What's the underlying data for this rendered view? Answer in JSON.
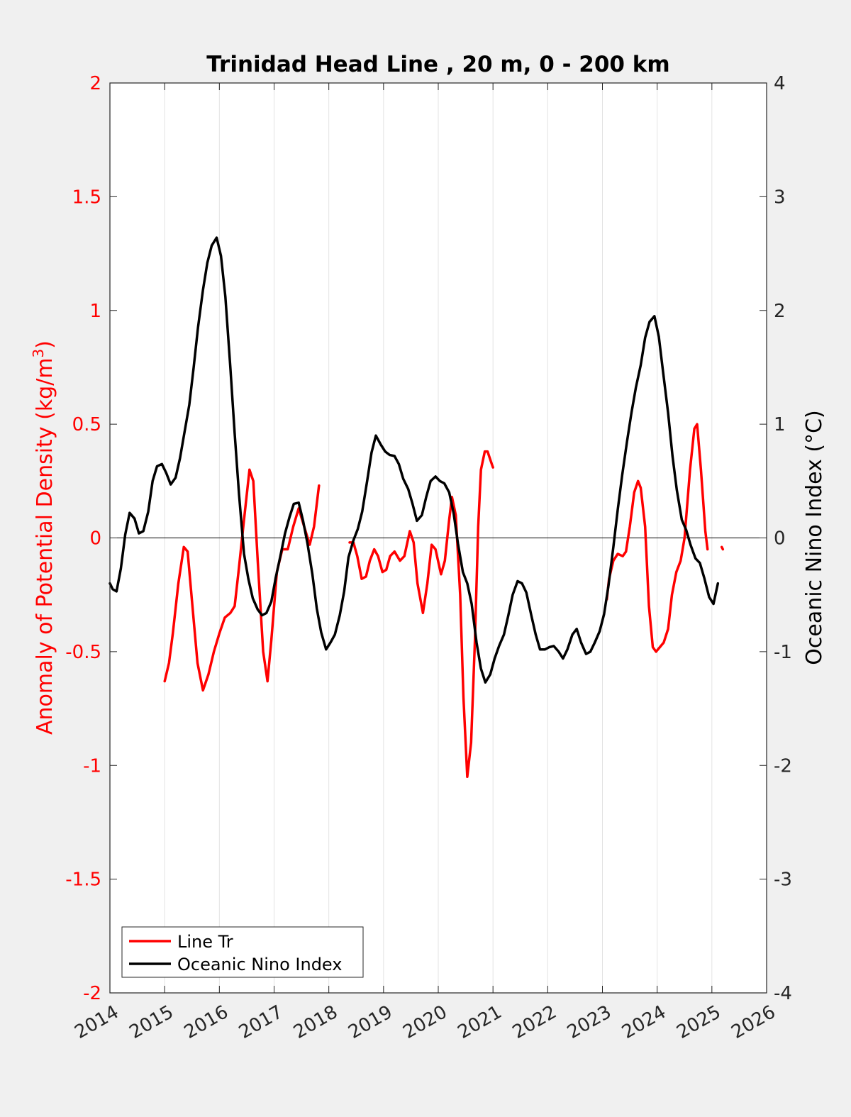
{
  "chart_data": {
    "type": "line",
    "title": "Trinidad Head Line , 20 m, 0 - 200 km",
    "ylabel_left": "Anomaly of Potential Density (kg/m",
    "ylabel_left_sup": "3",
    "ylabel_left_close": ")",
    "ylabel_right": "Oceanic Nino Index (°C)",
    "xlim": [
      2014,
      2026
    ],
    "ylim_left": [
      -2,
      2
    ],
    "ylim_right": [
      -4,
      4
    ],
    "grid": "vertical",
    "legend_position": "bottom-left",
    "x_ticks": [
      2014,
      2015,
      2016,
      2017,
      2018,
      2019,
      2020,
      2021,
      2022,
      2023,
      2024,
      2025,
      2026
    ],
    "x_tick_labels": [
      "2014",
      "2015",
      "2016",
      "2017",
      "2018",
      "2019",
      "2020",
      "2021",
      "2022",
      "2023",
      "2024",
      "2025",
      "2026"
    ],
    "y_left_ticks": [
      2,
      1.5,
      1,
      0.5,
      0,
      -0.5,
      -1,
      -1.5,
      -2
    ],
    "y_left_tick_labels": [
      "2",
      "1.5",
      "1",
      "0.5",
      "0",
      "-0.5",
      "-1",
      "-1.5",
      "-2"
    ],
    "y_right_ticks": [
      4,
      3,
      2,
      1,
      0,
      -1,
      -2,
      -3,
      -4
    ],
    "y_right_tick_labels": [
      "4",
      "3",
      "2",
      "1",
      "0",
      "-1",
      "-2",
      "-3",
      "-4"
    ],
    "colors": {
      "line_tr": "#ff0000",
      "oni": "#000000",
      "left_axis": "#ff0000",
      "right_axis": "#262626"
    },
    "series": [
      {
        "name": "Line Tr",
        "axis": "left",
        "segments": [
          [
            [
              2015.0,
              -0.63
            ],
            [
              2015.08,
              -0.55
            ],
            [
              2015.15,
              -0.42
            ],
            [
              2015.25,
              -0.2
            ],
            [
              2015.35,
              -0.04
            ],
            [
              2015.42,
              -0.06
            ],
            [
              2015.5,
              -0.28
            ],
            [
              2015.6,
              -0.55
            ],
            [
              2015.7,
              -0.67
            ],
            [
              2015.8,
              -0.6
            ],
            [
              2015.9,
              -0.5
            ],
            [
              2016.0,
              -0.42
            ],
            [
              2016.1,
              -0.35
            ],
            [
              2016.2,
              -0.33
            ],
            [
              2016.28,
              -0.3
            ],
            [
              2016.35,
              -0.15
            ],
            [
              2016.45,
              0.08
            ],
            [
              2016.55,
              0.3
            ],
            [
              2016.62,
              0.25
            ],
            [
              2016.7,
              -0.1
            ],
            [
              2016.8,
              -0.5
            ],
            [
              2016.88,
              -0.63
            ],
            [
              2016.95,
              -0.45
            ],
            [
              2017.05,
              -0.15
            ],
            [
              2017.15,
              -0.05
            ],
            [
              2017.25,
              -0.05
            ],
            [
              2017.35,
              0.05
            ],
            [
              2017.45,
              0.13
            ],
            [
              2017.55,
              0.05
            ],
            [
              2017.65,
              -0.03
            ],
            [
              2017.73,
              0.05
            ],
            [
              2017.82,
              0.23
            ]
          ],
          [
            [
              2018.38,
              -0.02
            ],
            [
              2018.45,
              -0.02
            ],
            [
              2018.52,
              -0.08
            ],
            [
              2018.6,
              -0.18
            ],
            [
              2018.68,
              -0.17
            ],
            [
              2018.75,
              -0.1
            ],
            [
              2018.83,
              -0.05
            ],
            [
              2018.9,
              -0.08
            ],
            [
              2018.98,
              -0.15
            ],
            [
              2019.05,
              -0.14
            ],
            [
              2019.12,
              -0.08
            ],
            [
              2019.2,
              -0.06
            ],
            [
              2019.3,
              -0.1
            ],
            [
              2019.38,
              -0.08
            ],
            [
              2019.48,
              0.03
            ],
            [
              2019.55,
              -0.02
            ],
            [
              2019.62,
              -0.2
            ],
            [
              2019.72,
              -0.33
            ],
            [
              2019.8,
              -0.2
            ],
            [
              2019.88,
              -0.03
            ],
            [
              2019.95,
              -0.05
            ],
            [
              2020.05,
              -0.16
            ],
            [
              2020.12,
              -0.1
            ],
            [
              2020.2,
              0.08
            ],
            [
              2020.25,
              0.18
            ],
            [
              2020.32,
              0.1
            ],
            [
              2020.4,
              -0.25
            ],
            [
              2020.46,
              -0.7
            ],
            [
              2020.53,
              -1.05
            ],
            [
              2020.6,
              -0.9
            ],
            [
              2020.67,
              -0.45
            ],
            [
              2020.73,
              0.05
            ],
            [
              2020.78,
              0.3
            ],
            [
              2020.85,
              0.38
            ],
            [
              2020.9,
              0.38
            ],
            [
              2020.97,
              0.33
            ],
            [
              2021.0,
              0.31
            ]
          ],
          [
            [
              2023.08,
              -0.27
            ],
            [
              2023.12,
              -0.18
            ],
            [
              2023.2,
              -0.1
            ],
            [
              2023.28,
              -0.07
            ],
            [
              2023.37,
              -0.08
            ],
            [
              2023.43,
              -0.06
            ],
            [
              2023.5,
              0.05
            ],
            [
              2023.58,
              0.2
            ],
            [
              2023.65,
              0.25
            ],
            [
              2023.7,
              0.22
            ],
            [
              2023.78,
              0.05
            ],
            [
              2023.85,
              -0.3
            ],
            [
              2023.92,
              -0.48
            ],
            [
              2023.98,
              -0.5
            ],
            [
              2024.05,
              -0.48
            ],
            [
              2024.12,
              -0.46
            ],
            [
              2024.2,
              -0.4
            ],
            [
              2024.27,
              -0.25
            ],
            [
              2024.35,
              -0.15
            ],
            [
              2024.43,
              -0.1
            ],
            [
              2024.5,
              0.0
            ],
            [
              2024.6,
              0.3
            ],
            [
              2024.68,
              0.48
            ],
            [
              2024.73,
              0.5
            ],
            [
              2024.8,
              0.3
            ],
            [
              2024.88,
              0.03
            ],
            [
              2024.92,
              -0.05
            ]
          ],
          [
            [
              2025.18,
              -0.04
            ],
            [
              2025.2,
              -0.05
            ]
          ]
        ]
      },
      {
        "name": "Oceanic Nino Index",
        "axis": "right",
        "segments": [
          [
            [
              2014.0,
              -0.4
            ],
            [
              2014.05,
              -0.45
            ],
            [
              2014.12,
              -0.47
            ],
            [
              2014.2,
              -0.27
            ],
            [
              2014.28,
              0.03
            ],
            [
              2014.36,
              0.22
            ],
            [
              2014.45,
              0.17
            ],
            [
              2014.53,
              0.04
            ],
            [
              2014.61,
              0.06
            ],
            [
              2014.7,
              0.23
            ],
            [
              2014.78,
              0.5
            ],
            [
              2014.86,
              0.63
            ],
            [
              2014.95,
              0.65
            ],
            [
              2015.03,
              0.57
            ],
            [
              2015.11,
              0.47
            ],
            [
              2015.2,
              0.53
            ],
            [
              2015.28,
              0.7
            ],
            [
              2015.36,
              0.92
            ],
            [
              2015.45,
              1.17
            ],
            [
              2015.53,
              1.5
            ],
            [
              2015.61,
              1.85
            ],
            [
              2015.7,
              2.18
            ],
            [
              2015.78,
              2.42
            ],
            [
              2015.86,
              2.57
            ],
            [
              2015.95,
              2.64
            ],
            [
              2016.03,
              2.48
            ],
            [
              2016.11,
              2.12
            ],
            [
              2016.2,
              1.5
            ],
            [
              2016.28,
              0.92
            ],
            [
              2016.36,
              0.38
            ],
            [
              2016.45,
              -0.14
            ],
            [
              2016.53,
              -0.36
            ],
            [
              2016.61,
              -0.53
            ],
            [
              2016.7,
              -0.63
            ],
            [
              2016.78,
              -0.68
            ],
            [
              2016.86,
              -0.66
            ],
            [
              2016.95,
              -0.56
            ],
            [
              2017.03,
              -0.35
            ],
            [
              2017.11,
              -0.17
            ],
            [
              2017.2,
              0.04
            ],
            [
              2017.28,
              0.18
            ],
            [
              2017.36,
              0.3
            ],
            [
              2017.45,
              0.31
            ],
            [
              2017.53,
              0.15
            ],
            [
              2017.61,
              -0.05
            ],
            [
              2017.7,
              -0.32
            ],
            [
              2017.78,
              -0.62
            ],
            [
              2017.86,
              -0.83
            ],
            [
              2017.95,
              -0.98
            ],
            [
              2018.03,
              -0.92
            ],
            [
              2018.11,
              -0.85
            ],
            [
              2018.2,
              -0.68
            ],
            [
              2018.28,
              -0.47
            ],
            [
              2018.36,
              -0.17
            ],
            [
              2018.45,
              -0.02
            ],
            [
              2018.53,
              0.08
            ],
            [
              2018.61,
              0.23
            ],
            [
              2018.7,
              0.5
            ],
            [
              2018.78,
              0.75
            ],
            [
              2018.86,
              0.9
            ],
            [
              2018.95,
              0.82
            ],
            [
              2019.03,
              0.76
            ],
            [
              2019.11,
              0.73
            ],
            [
              2019.2,
              0.72
            ],
            [
              2019.28,
              0.65
            ],
            [
              2019.36,
              0.52
            ],
            [
              2019.45,
              0.43
            ],
            [
              2019.53,
              0.3
            ],
            [
              2019.61,
              0.15
            ],
            [
              2019.7,
              0.2
            ],
            [
              2019.78,
              0.36
            ],
            [
              2019.86,
              0.5
            ],
            [
              2019.95,
              0.54
            ],
            [
              2020.03,
              0.5
            ],
            [
              2020.11,
              0.48
            ],
            [
              2020.2,
              0.4
            ],
            [
              2020.28,
              0.22
            ],
            [
              2020.36,
              -0.05
            ],
            [
              2020.45,
              -0.3
            ],
            [
              2020.53,
              -0.4
            ],
            [
              2020.61,
              -0.58
            ],
            [
              2020.7,
              -0.92
            ],
            [
              2020.78,
              -1.15
            ],
            [
              2020.86,
              -1.27
            ],
            [
              2020.95,
              -1.2
            ],
            [
              2021.03,
              -1.06
            ],
            [
              2021.11,
              -0.95
            ],
            [
              2021.2,
              -0.85
            ],
            [
              2021.28,
              -0.68
            ],
            [
              2021.36,
              -0.5
            ],
            [
              2021.45,
              -0.38
            ],
            [
              2021.53,
              -0.4
            ],
            [
              2021.61,
              -0.48
            ],
            [
              2021.7,
              -0.68
            ],
            [
              2021.78,
              -0.85
            ],
            [
              2021.86,
              -0.98
            ],
            [
              2021.95,
              -0.98
            ],
            [
              2022.03,
              -0.96
            ],
            [
              2022.11,
              -0.95
            ],
            [
              2022.2,
              -1.0
            ],
            [
              2022.28,
              -1.06
            ],
            [
              2022.36,
              -0.98
            ],
            [
              2022.45,
              -0.85
            ],
            [
              2022.53,
              -0.8
            ],
            [
              2022.61,
              -0.92
            ],
            [
              2022.7,
              -1.02
            ],
            [
              2022.78,
              -1.0
            ],
            [
              2022.86,
              -0.92
            ],
            [
              2022.95,
              -0.82
            ],
            [
              2023.03,
              -0.67
            ],
            [
              2023.11,
              -0.42
            ],
            [
              2023.2,
              -0.08
            ],
            [
              2023.28,
              0.25
            ],
            [
              2023.36,
              0.55
            ],
            [
              2023.45,
              0.85
            ],
            [
              2023.53,
              1.1
            ],
            [
              2023.61,
              1.32
            ],
            [
              2023.7,
              1.52
            ],
            [
              2023.78,
              1.76
            ],
            [
              2023.86,
              1.9
            ],
            [
              2023.95,
              1.95
            ],
            [
              2024.03,
              1.77
            ],
            [
              2024.11,
              1.45
            ],
            [
              2024.2,
              1.1
            ],
            [
              2024.28,
              0.72
            ],
            [
              2024.36,
              0.42
            ],
            [
              2024.45,
              0.16
            ],
            [
              2024.53,
              0.07
            ],
            [
              2024.61,
              -0.06
            ],
            [
              2024.7,
              -0.18
            ],
            [
              2024.78,
              -0.22
            ],
            [
              2024.86,
              -0.35
            ],
            [
              2024.95,
              -0.52
            ],
            [
              2025.03,
              -0.58
            ],
            [
              2025.11,
              -0.4
            ]
          ]
        ]
      }
    ]
  }
}
